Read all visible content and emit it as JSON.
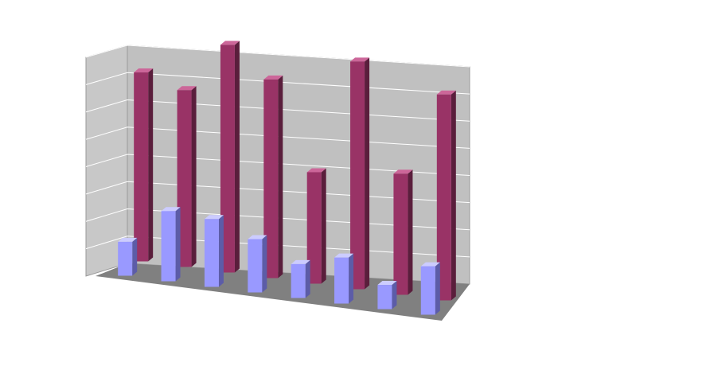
{
  "chart_data": {
    "type": "bar",
    "style": "3d-clustered-depth",
    "title": "",
    "xlabel": "",
    "ylabel": "",
    "categories": [
      "",
      "",
      "",
      "",
      "",
      "",
      "",
      ""
    ],
    "ylim": [
      0,
      9
    ],
    "grid": true,
    "legend": "none",
    "series": [
      {
        "values": [
          1.4,
          2.9,
          2.8,
          2.2,
          1.4,
          1.9,
          1.0,
          2.0
        ]
      },
      {
        "values": [
          7.8,
          7.3,
          9.4,
          8.2,
          4.6,
          9.4,
          5.0,
          8.5
        ]
      }
    ]
  },
  "colors": {
    "back_wall": "#c0c0c0",
    "side_wall": "#c8c8c8",
    "floor": "#808080",
    "gridline": "#ffffff",
    "series_front": [
      "#9999ff",
      "#993366"
    ],
    "series_top": [
      "#ccccff",
      "#cc6699"
    ],
    "series_side": [
      "#5c5ca8",
      "#5a1e3c"
    ]
  }
}
